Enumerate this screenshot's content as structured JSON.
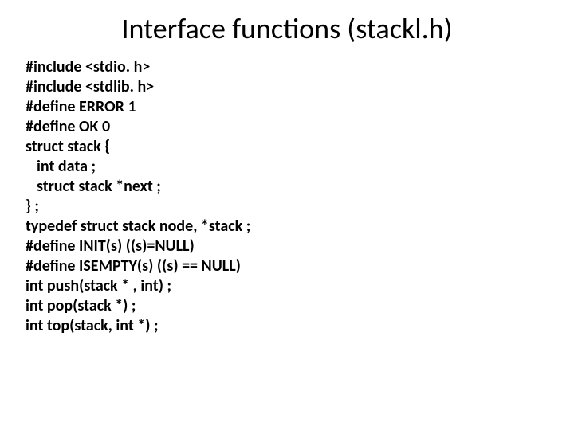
{
  "slide": {
    "title": "Interface functions (stackl.h)",
    "title_fontsize": 36,
    "title_color": "#000000",
    "code_fontsize": 20,
    "code_fontweight": "bold",
    "code_color": "#000000",
    "background_color": "#ffffff",
    "lines": [
      {
        "text": "#include <stdio. h>",
        "indent": 0
      },
      {
        "text": "#include <stdlib. h>",
        "indent": 0
      },
      {
        "text": "#define ERROR 1",
        "indent": 0
      },
      {
        "text": "#define OK 0",
        "indent": 0
      },
      {
        "text": "struct stack {",
        "indent": 0
      },
      {
        "text": "int data ;",
        "indent": 1
      },
      {
        "text": "struct stack *next ;",
        "indent": 1
      },
      {
        "text": "} ;",
        "indent": 0
      },
      {
        "text": "typedef struct stack node, *stack ;",
        "indent": 0
      },
      {
        "text": "#define INIT(s) ((s)=NULL)",
        "indent": 0
      },
      {
        "text": "#define ISEMPTY(s) ((s) == NULL)",
        "indent": 0
      },
      {
        "text": "int push(stack * , int) ;",
        "indent": 0
      },
      {
        "text": "int pop(stack *) ;",
        "indent": 0
      },
      {
        "text": "int top(stack, int *) ;",
        "indent": 0
      }
    ]
  }
}
